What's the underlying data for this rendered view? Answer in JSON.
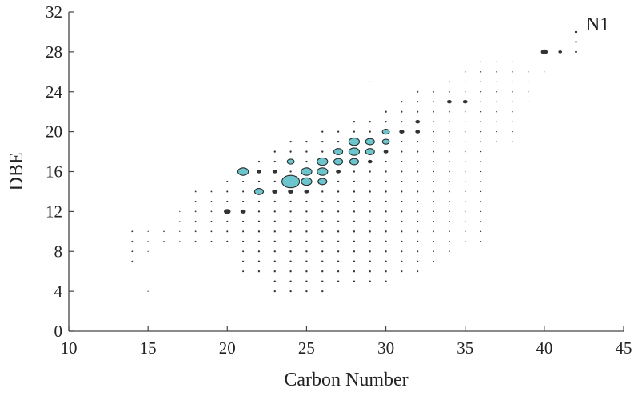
{
  "chart_data": {
    "type": "scatter",
    "title": "",
    "xlabel": "Carbon Number",
    "ylabel": "DBE",
    "xlim": [
      10,
      45
    ],
    "ylim": [
      0,
      32
    ],
    "xticks": [
      10,
      15,
      20,
      25,
      30,
      35,
      40,
      45
    ],
    "yticks": [
      0,
      4,
      8,
      12,
      16,
      20,
      24,
      28,
      32
    ],
    "grid": false,
    "annotation": "N1",
    "colors": {
      "highlight": "#6cc4cc",
      "edge": "#2a2a2a",
      "dot": "#333333",
      "axis": "#444444"
    },
    "points": [
      {
        "x": 24,
        "y": 15,
        "size": 5,
        "highlight": true
      },
      {
        "x": 21,
        "y": 16,
        "size": 3,
        "highlight": true
      },
      {
        "x": 25,
        "y": 15,
        "size": 3,
        "highlight": true
      },
      {
        "x": 25,
        "y": 16,
        "size": 3,
        "highlight": true
      },
      {
        "x": 22,
        "y": 14,
        "size": 2.5,
        "highlight": true
      },
      {
        "x": 26,
        "y": 15,
        "size": 2.5,
        "highlight": true
      },
      {
        "x": 26,
        "y": 16,
        "size": 3,
        "highlight": true
      },
      {
        "x": 26,
        "y": 17,
        "size": 3,
        "highlight": true
      },
      {
        "x": 27,
        "y": 17,
        "size": 2.5,
        "highlight": true
      },
      {
        "x": 27,
        "y": 18,
        "size": 2.5,
        "highlight": true
      },
      {
        "x": 28,
        "y": 17,
        "size": 2.5,
        "highlight": true
      },
      {
        "x": 28,
        "y": 18,
        "size": 3,
        "highlight": true
      },
      {
        "x": 28,
        "y": 19,
        "size": 3,
        "highlight": true
      },
      {
        "x": 29,
        "y": 18,
        "size": 2.5,
        "highlight": true
      },
      {
        "x": 29,
        "y": 19,
        "size": 2.5,
        "highlight": true
      },
      {
        "x": 30,
        "y": 19,
        "size": 2,
        "highlight": true
      },
      {
        "x": 30,
        "y": 20,
        "size": 2,
        "highlight": true
      },
      {
        "x": 24,
        "y": 17,
        "size": 2,
        "highlight": true
      },
      {
        "x": 20,
        "y": 12,
        "size": 1.8
      },
      {
        "x": 21,
        "y": 12,
        "size": 1.4
      },
      {
        "x": 23,
        "y": 14,
        "size": 1.4
      },
      {
        "x": 24,
        "y": 14,
        "size": 1.4
      },
      {
        "x": 25,
        "y": 14,
        "size": 1.2
      },
      {
        "x": 22,
        "y": 16,
        "size": 1.2
      },
      {
        "x": 23,
        "y": 16,
        "size": 1.2
      },
      {
        "x": 27,
        "y": 16,
        "size": 1.2
      },
      {
        "x": 29,
        "y": 17,
        "size": 1.2
      },
      {
        "x": 30,
        "y": 18,
        "size": 1.2
      },
      {
        "x": 31,
        "y": 20,
        "size": 1.3
      },
      {
        "x": 32,
        "y": 20,
        "size": 1.2
      },
      {
        "x": 32,
        "y": 21,
        "size": 1.2
      },
      {
        "x": 34,
        "y": 23,
        "size": 1.2
      },
      {
        "x": 35,
        "y": 23,
        "size": 1.2
      },
      {
        "x": 40,
        "y": 28,
        "size": 1.8
      },
      {
        "x": 41,
        "y": 28,
        "size": 0.9
      },
      {
        "x": 42,
        "y": 30,
        "size": 0.6
      },
      {
        "x": 42,
        "y": 29,
        "size": 0.5
      },
      {
        "x": 42,
        "y": 28,
        "size": 0.5
      }
    ],
    "dot_grid": [
      {
        "x": 14,
        "ymin": 7,
        "ymax": 10,
        "size": 0.7
      },
      {
        "x": 15,
        "ymin": 8,
        "ymax": 10,
        "size": 0.5
      },
      {
        "x": 15,
        "ymin": 4,
        "ymax": 4,
        "size": 0.5
      },
      {
        "x": 16,
        "ymin": 9,
        "ymax": 10,
        "size": 0.6
      },
      {
        "x": 17,
        "ymin": 9,
        "ymax": 12,
        "size": 0.5
      },
      {
        "x": 18,
        "ymin": 9,
        "ymax": 14,
        "size": 0.7
      },
      {
        "x": 19,
        "ymin": 9,
        "ymax": 14,
        "size": 0.7
      },
      {
        "x": 20,
        "ymin": 9,
        "ymax": 15,
        "size": 0.8
      },
      {
        "x": 21,
        "ymin": 6,
        "ymax": 15,
        "size": 0.8
      },
      {
        "x": 22,
        "ymin": 6,
        "ymax": 17,
        "size": 0.9
      },
      {
        "x": 23,
        "ymin": 4,
        "ymax": 18,
        "size": 0.9
      },
      {
        "x": 24,
        "ymin": 4,
        "ymax": 19,
        "size": 0.9
      },
      {
        "x": 25,
        "ymin": 4,
        "ymax": 19,
        "size": 0.9
      },
      {
        "x": 26,
        "ymin": 4,
        "ymax": 20,
        "size": 0.9
      },
      {
        "x": 27,
        "ymin": 5,
        "ymax": 20,
        "size": 0.9
      },
      {
        "x": 28,
        "ymin": 5,
        "ymax": 21,
        "size": 0.9
      },
      {
        "x": 29,
        "ymin": 5,
        "ymax": 21,
        "size": 0.9
      },
      {
        "x": 29,
        "ymin": 25,
        "ymax": 25,
        "size": 0.4
      },
      {
        "x": 30,
        "ymin": 5,
        "ymax": 22,
        "size": 0.9
      },
      {
        "x": 31,
        "ymin": 6,
        "ymax": 23,
        "size": 0.8
      },
      {
        "x": 32,
        "ymin": 6,
        "ymax": 24,
        "size": 0.8
      },
      {
        "x": 33,
        "ymin": 7,
        "ymax": 24,
        "size": 0.7
      },
      {
        "x": 34,
        "ymin": 8,
        "ymax": 25,
        "size": 0.7
      },
      {
        "x": 35,
        "ymin": 9,
        "ymax": 27,
        "size": 0.6
      },
      {
        "x": 36,
        "ymin": 9,
        "ymax": 27,
        "size": 0.5
      },
      {
        "x": 37,
        "ymin": 19,
        "ymax": 27,
        "size": 0.45
      },
      {
        "x": 38,
        "ymin": 19,
        "ymax": 27,
        "size": 0.45
      },
      {
        "x": 39,
        "ymin": 23,
        "ymax": 27,
        "size": 0.4
      },
      {
        "x": 40,
        "ymin": 26,
        "ymax": 27,
        "size": 0.4
      }
    ]
  }
}
